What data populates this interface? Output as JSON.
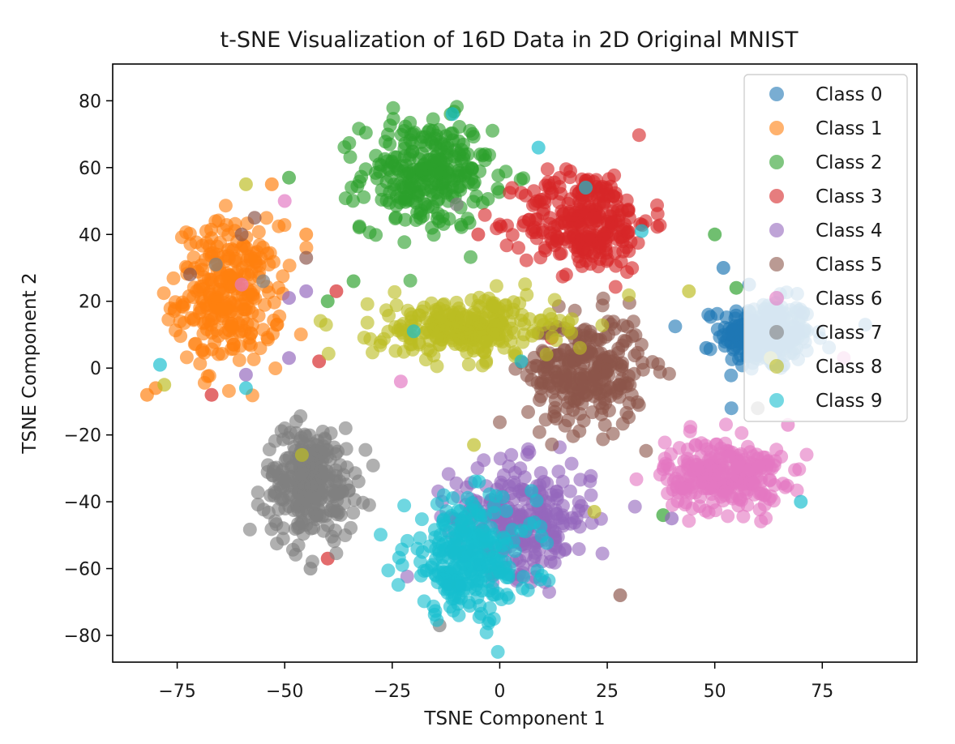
{
  "chart_data": {
    "type": "scatter",
    "title": "t-SNE Visualization of 16D Data in 2D Original MNIST",
    "xlabel": "TSNE Component 1",
    "ylabel": "TSNE Component 2",
    "xlim": [
      -90,
      97
    ],
    "ylim": [
      -88,
      91
    ],
    "xticks": [
      -75,
      -50,
      -25,
      0,
      25,
      50,
      75
    ],
    "xtick_labels": [
      "−75",
      "−50",
      "−25",
      "0",
      "25",
      "50",
      "75"
    ],
    "yticks": [
      80,
      60,
      40,
      20,
      0,
      -20,
      -40,
      -60,
      -80
    ],
    "ytick_labels": [
      "80",
      "60",
      "40",
      "20",
      "0",
      "−20",
      "−40",
      "−60",
      "−80"
    ],
    "grid": false,
    "legend_position": "top-right",
    "series": [
      {
        "name": "Class 0",
        "color": "#1f77b4",
        "center": [
          62,
          10
        ],
        "spread": [
          7,
          7
        ],
        "outliers": [
          [
            58,
            25
          ],
          [
            48,
            6
          ],
          [
            85,
            13
          ],
          [
            52,
            30
          ]
        ]
      },
      {
        "name": "Class 1",
        "color": "#ff7f0e",
        "center": [
          -63,
          22
        ],
        "spread": [
          8,
          14
        ],
        "outliers": [
          [
            -53,
            55
          ],
          [
            -80,
            -6
          ],
          [
            -82,
            -8
          ],
          [
            -45,
            40
          ]
        ]
      },
      {
        "name": "Class 2",
        "color": "#2ca02c",
        "center": [
          -17,
          58
        ],
        "spread": [
          10,
          11
        ],
        "outliers": [
          [
            -40,
            20
          ],
          [
            50,
            40
          ],
          [
            -49,
            57
          ],
          [
            38,
            -44
          ],
          [
            55,
            24
          ],
          [
            -34,
            26
          ]
        ]
      },
      {
        "name": "Class 3",
        "color": "#d62728",
        "center": [
          20,
          44
        ],
        "spread": [
          10,
          10
        ],
        "outliers": [
          [
            -38,
            23
          ],
          [
            -40,
            -57
          ],
          [
            -67,
            -8
          ],
          [
            -42,
            2
          ],
          [
            -5,
            40
          ],
          [
            12,
            9
          ]
        ]
      },
      {
        "name": "Class 4",
        "color": "#9467bd",
        "center": [
          5,
          -45
        ],
        "spread": [
          11,
          11
        ],
        "outliers": [
          [
            -49,
            21
          ],
          [
            -59,
            -2
          ],
          [
            -49,
            3
          ],
          [
            40,
            -45
          ],
          [
            -45,
            23
          ]
        ]
      },
      {
        "name": "Class 5",
        "color": "#8c564b",
        "center": [
          20,
          -1
        ],
        "spread": [
          9,
          11
        ],
        "outliers": [
          [
            -57,
            45
          ],
          [
            -72,
            28
          ],
          [
            -45,
            33
          ],
          [
            28,
            -68
          ],
          [
            -60,
            40
          ]
        ]
      },
      {
        "name": "Class 6",
        "color": "#e377c2",
        "center": [
          52,
          -32
        ],
        "spread": [
          9,
          7
        ],
        "outliers": [
          [
            -50,
            50
          ],
          [
            -60,
            25
          ],
          [
            67,
            -17
          ],
          [
            -23,
            -4
          ],
          [
            80,
            3
          ]
        ]
      },
      {
        "name": "Class 7",
        "color": "#7f7f7f",
        "center": [
          -44,
          -34
        ],
        "spread": [
          7,
          11
        ],
        "outliers": [
          [
            -66,
            31
          ],
          [
            -10,
            49
          ],
          [
            -55,
            26
          ],
          [
            -14,
            -77
          ],
          [
            60,
            -12
          ],
          [
            -44,
            -60
          ]
        ]
      },
      {
        "name": "Class 8",
        "color": "#bcbd22",
        "center": [
          -8,
          12
        ],
        "spread": [
          14,
          6
        ],
        "outliers": [
          [
            -78,
            -5
          ],
          [
            -46,
            -26
          ],
          [
            44,
            23
          ],
          [
            22,
            -43
          ],
          [
            -6,
            -23
          ],
          [
            63,
            3
          ],
          [
            -59,
            55
          ]
        ]
      },
      {
        "name": "Class 9",
        "color": "#17becf",
        "center": [
          -7,
          -57
        ],
        "spread": [
          10,
          12
        ],
        "outliers": [
          [
            -11,
            76
          ],
          [
            9,
            66
          ],
          [
            -79,
            1
          ],
          [
            -20,
            11
          ],
          [
            33,
            41
          ],
          [
            20,
            54
          ],
          [
            -59,
            -6
          ],
          [
            70,
            -40
          ],
          [
            5,
            2
          ]
        ]
      }
    ]
  }
}
